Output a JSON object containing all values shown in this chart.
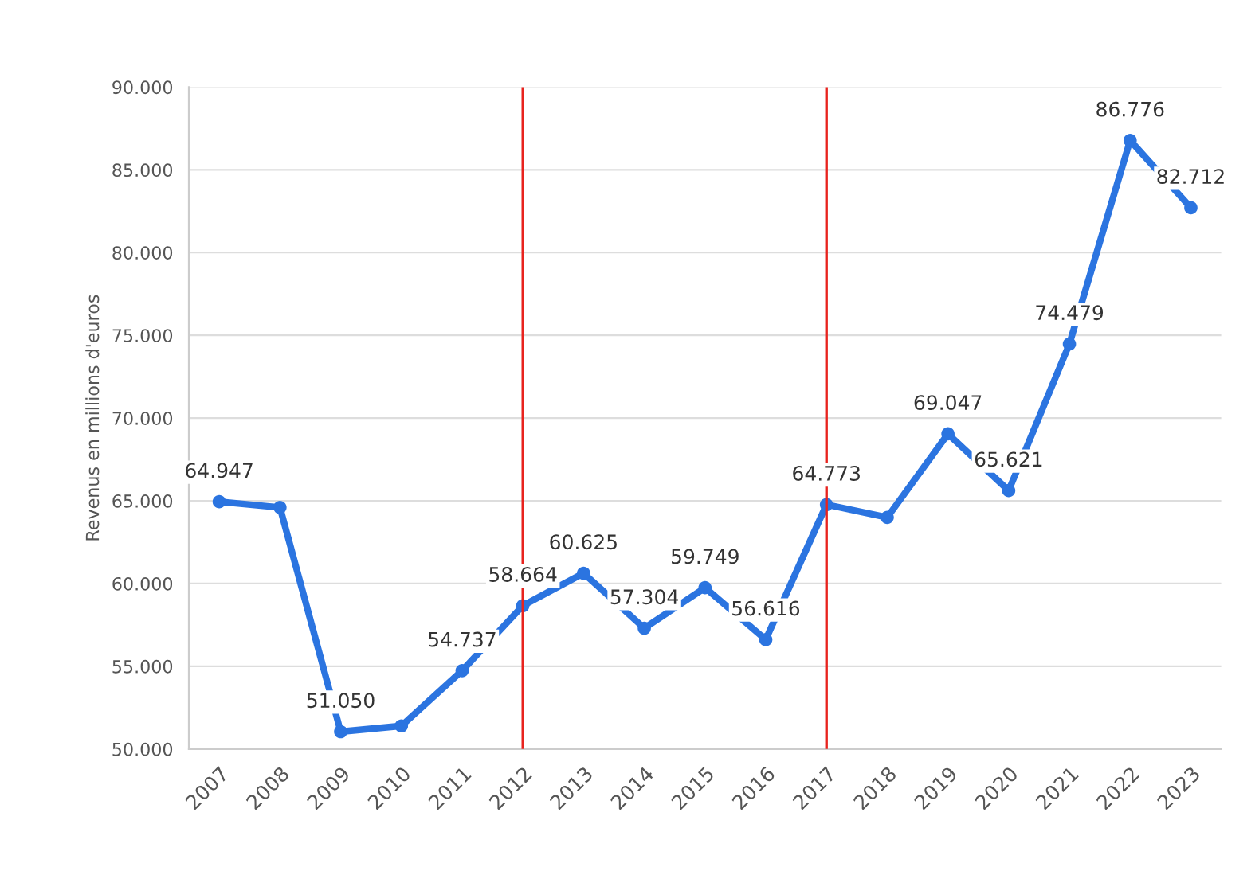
{
  "chart_data": {
    "type": "line",
    "ylabel": "Revenus en millions d'euros",
    "categories": [
      "2007",
      "2008",
      "2009",
      "2010",
      "2011",
      "2012",
      "2013",
      "2014",
      "2015",
      "2016",
      "2017",
      "2018",
      "2019",
      "2020",
      "2021",
      "2022",
      "2023"
    ],
    "series": [
      {
        "color": "#2b74e0",
        "values": [
          64947,
          64600,
          51050,
          51400,
          54737,
          58664,
          60625,
          57304,
          59749,
          56616,
          64773,
          64000,
          69047,
          65621,
          74479,
          86776,
          82712
        ],
        "value_labels": [
          "64.947",
          null,
          "51.050",
          null,
          "54.737",
          "58.664",
          "60.625",
          "57.304",
          "59.749",
          "56.616",
          "64.773",
          null,
          "69.047",
          "65.621",
          "74.479",
          "86.776",
          "82.712"
        ]
      }
    ],
    "ylim": [
      50000,
      90000
    ],
    "yticks": [
      {
        "value": 50000,
        "label": "50.000"
      },
      {
        "value": 55000,
        "label": "55.000"
      },
      {
        "value": 60000,
        "label": "60.000"
      },
      {
        "value": 65000,
        "label": "65.000"
      },
      {
        "value": 70000,
        "label": "70.000"
      },
      {
        "value": 75000,
        "label": "75.000"
      },
      {
        "value": 80000,
        "label": "80.000"
      },
      {
        "value": 85000,
        "label": "85.000"
      },
      {
        "value": 90000,
        "label": "90.000"
      }
    ],
    "ref_lines": [
      {
        "axis": "x",
        "value": "2012",
        "color": "#e8231e"
      },
      {
        "axis": "x",
        "value": "2017",
        "color": "#e8231e"
      }
    ],
    "grid": "y",
    "marker": "circle",
    "line_style": "solid"
  }
}
